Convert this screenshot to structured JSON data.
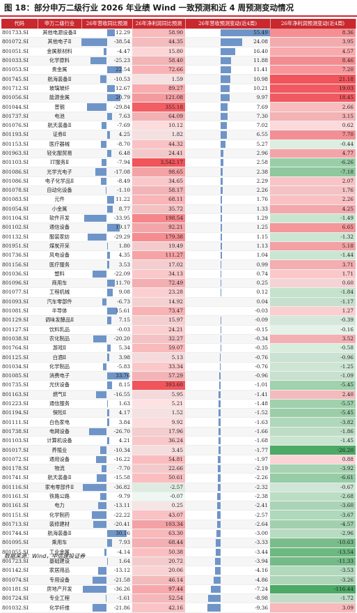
{
  "title": "图 18：部分申万二级行业 2026 年业绩 Wind 一致预测和近 4 周预测变动情况",
  "headers": [
    "代码",
    "申万二级行业",
    "26年营收同比预测",
    "26年净利润同比预测",
    "26年营收预测变动(近4周)",
    "26年净利润预测变动(近4周)"
  ],
  "source": "数据来源：Wind，中信建投证券",
  "colors": {
    "accent": "#c8282e",
    "bar_blue": "#6f95c8",
    "heat_red": "#f0474e",
    "heat_green": "#3fa35a"
  },
  "rows": [
    [
      "801733.SI",
      "其他电源设备Ⅱ",
      "12.29",
      "58.90",
      "55.49",
      "8.36"
    ],
    [
      "801072.SI",
      "其他电子Ⅱ",
      "-38.54",
      "44.35",
      "24.08",
      "3.95"
    ],
    [
      "801051.SI",
      "金属新材料",
      "-4.47",
      "15.80",
      "16.40",
      "4.57"
    ],
    [
      "801033.SI",
      "化学原料",
      "-25.23",
      "58.40",
      "11.88",
      "8.46"
    ],
    [
      "801053.SI",
      "贵金属",
      "22.54",
      "72.66",
      "11.41",
      "7.20"
    ],
    [
      "801745.SI",
      "航海装备Ⅱ",
      "-10.53",
      "1.59",
      "10.98",
      "21.18"
    ],
    [
      "801712.SI",
      "玻璃玻纤",
      "12.67",
      "89.27",
      "10.21",
      "19.03"
    ],
    [
      "801056.SI",
      "能源金属",
      "20.79",
      "121.08",
      "9.97",
      "18.45"
    ],
    [
      "801044.SI",
      "普钢",
      "-29.84",
      "355.18",
      "7.69",
      "2.66"
    ],
    [
      "801737.SI",
      "电池",
      "7.63",
      "64.09",
      "7.30",
      "3.15"
    ],
    [
      "801076.SI",
      "航天装备Ⅱ",
      "-7.69",
      "10.12",
      "7.02",
      "0.62"
    ],
    [
      "801193.SI",
      "证券Ⅱ",
      "4.25",
      "1.82",
      "6.55",
      "7.70"
    ],
    [
      "801153.SI",
      "医疗器械",
      "-8.70",
      "44.32",
      "5.27",
      "-0.44"
    ],
    [
      "801963.SI",
      "轻化服贸易",
      "6.48",
      "24.41",
      "2.96",
      "4.77"
    ],
    [
      "801103.SI",
      "IT服务Ⅱ",
      "-7.94",
      "3,542.17",
      "2.58",
      "-6.26"
    ],
    [
      "801086.SI",
      "光学光电子",
      "-17.08",
      "98.65",
      "2.38",
      "-7.18"
    ],
    [
      "801086.SI",
      "电子化学品Ⅱ",
      "-8.49",
      "34.65",
      "2.29",
      "2.07"
    ],
    [
      "801078.SI",
      "自动化设备",
      "-1.10",
      "58.17",
      "2.26",
      "1.76"
    ],
    [
      "801083.SI",
      "元件",
      "11.22",
      "68.11",
      "1.76",
      "2.26"
    ],
    [
      "801054.SI",
      "小金属",
      "8.77",
      "35.72",
      "1.33",
      "4.25"
    ],
    [
      "801104.SI",
      "软件开发",
      "-33.95",
      "198.54",
      "1.29",
      "-1.49"
    ],
    [
      "801102.SI",
      "通信设备",
      "19.17",
      "92.21",
      "1.25",
      "6.65"
    ],
    [
      "801132.SI",
      "服装家纺",
      "-29.29",
      "179.38",
      "1.15",
      "-1.32"
    ],
    [
      "801951.SI",
      "煤炭开采",
      "1.80",
      "19.49",
      "1.13",
      "5.18"
    ],
    [
      "801736.SI",
      "风电设备",
      "4.35",
      "111.27",
      "1.04",
      "-1.44"
    ],
    [
      "801156.SI",
      "医疗服务",
      "3.53",
      "17.02",
      "0.99",
      "3.71"
    ],
    [
      "801036.SI",
      "塑料",
      "-22.09",
      "34.13",
      "0.74",
      "1.71"
    ],
    [
      "801096.SI",
      "商用车",
      "11.70",
      "72.49",
      "0.25",
      "0.60"
    ],
    [
      "801077.SI",
      "工程机械",
      "9.08",
      "23.28",
      "0.12",
      "-1.84"
    ],
    [
      "801093.SI",
      "汽车零部件",
      "-6.73",
      "14.92",
      "0.04",
      "-1.17"
    ],
    [
      "801081.SI",
      "半导体",
      "15.61",
      "73.47",
      "-0.03",
      "1.27"
    ],
    [
      "801129.SI",
      "调味发酵品Ⅱ",
      "7.15",
      "15.97",
      "-0.09",
      "-0.39"
    ],
    [
      "801127.SI",
      "饮料乳品",
      "-0.03",
      "24.21",
      "-0.15",
      "-0.16"
    ],
    [
      "801038.SI",
      "农化制品",
      "-20.20",
      "32.27",
      "-0.34",
      "3.52"
    ],
    [
      "801764.SI",
      "游戏Ⅱ",
      "5.34",
      "59.07",
      "-0.35",
      "-0.58"
    ],
    [
      "801125.SI",
      "白酒Ⅱ",
      "3.98",
      "5.13",
      "-0.76",
      "-0.96"
    ],
    [
      "801034.SI",
      "化学制品",
      "-5.83",
      "33.34",
      "-0.76",
      "-1.25"
    ],
    [
      "801085.SI",
      "消费电子",
      "33.76",
      "57.29",
      "-0.96",
      "-1.09"
    ],
    [
      "801735.SI",
      "光伏设备",
      "8.15",
      "393.60",
      "-1.01",
      "-5.45"
    ],
    [
      "801163.SI",
      "燃气Ⅱ",
      "-16.55",
      "5.95",
      "-1.41",
      "2.40"
    ],
    [
      "801223.SI",
      "通信服务",
      "1.63",
      "5.21",
      "-1.48",
      "-5.57"
    ],
    [
      "801194.SI",
      "保险Ⅱ",
      "4.17",
      "1.52",
      "-1.52",
      "-5.45"
    ],
    [
      "801111.SI",
      "白色家电",
      "3.84",
      "9.92",
      "-1.63",
      "-3.82"
    ],
    [
      "801738.SI",
      "电网设备",
      "-26.70",
      "17.96",
      "-1.66",
      "-1.86"
    ],
    [
      "801103.SI",
      "计算机设备",
      "4.21",
      "36.24",
      "-1.68",
      "-1.45"
    ],
    [
      "801017.SI",
      "养殖业",
      "-10.34",
      "3.45",
      "-1.77",
      "-26.20"
    ],
    [
      "801072.SI",
      "通用设备",
      "-16.22",
      "54.81",
      "-1.97",
      "0.88"
    ],
    [
      "801178.SI",
      "物流",
      "-7.70",
      "22.66",
      "-2.19",
      "-3.92"
    ],
    [
      "801741.SI",
      "航天装备Ⅱ",
      "-15.58",
      "50.61",
      "-2.26",
      "-6.61"
    ],
    [
      "801116.SI",
      "家电零部件Ⅱ",
      "-36.82",
      "-2.57",
      "-2.32",
      "-0.67"
    ],
    [
      "801161.SI",
      "铁路公路",
      "-9.79",
      "-0.07",
      "-2.38",
      "-2.68"
    ],
    [
      "801161.SI",
      "电力",
      "-13.11",
      "0.25",
      "-2.41",
      "-3.60"
    ],
    [
      "801151.SI",
      "化学制药",
      "-22.22",
      "43.07",
      "-2.57",
      "-3.67"
    ],
    [
      "801713.SI",
      "装修建材",
      "-20.41",
      "103.34",
      "-2.64",
      "-4.57"
    ],
    [
      "801744.SI",
      "航海装备Ⅱ",
      "30.16",
      "63.30",
      "-3.00",
      "-2.96"
    ],
    [
      "801095.SI",
      "乘用车",
      "7.93",
      "68.44",
      "-3.33",
      "-10.63"
    ],
    [
      "801055.SI",
      "工业金属",
      "-4.14",
      "50.38",
      "-3.44",
      "-13.54"
    ],
    [
      "801723.SI",
      "基础建设",
      "1.64",
      "20.72",
      "-3.94",
      "-11.33"
    ],
    [
      "801142.SI",
      "家居用品",
      "-13.12",
      "20.06",
      "-4.16",
      "-3.53"
    ],
    [
      "801074.SI",
      "专用设备",
      "-21.58",
      "46.14",
      "-4.86",
      "-3.26"
    ],
    [
      "801181.SI",
      "房地产开发",
      "-36.26",
      "97.44",
      "-7.24",
      "-116.44"
    ],
    [
      "801724.SI",
      "专业工程",
      "-1.61",
      "52.54",
      "-8.98",
      "-1.72"
    ],
    [
      "801032.SI",
      "化学纤维",
      "-21.86",
      "42.16",
      "-9.36",
      "3.09"
    ]
  ]
}
